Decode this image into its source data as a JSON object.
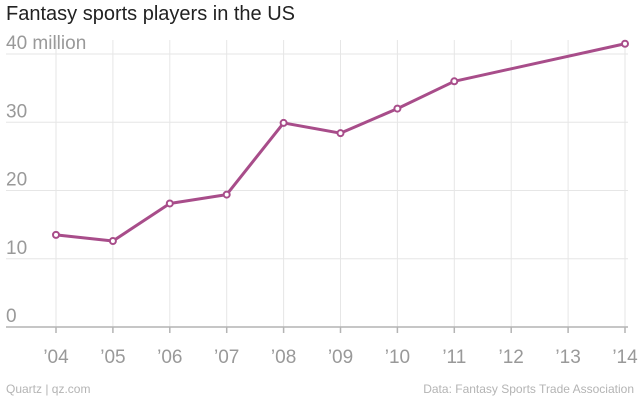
{
  "chart_data": {
    "type": "line",
    "title": "Fantasy sports players in the US",
    "xlabel": "",
    "ylabel": "",
    "y_unit_label": "40 million",
    "ylim": [
      0,
      42
    ],
    "y_ticks": [
      0,
      10,
      20,
      30,
      40
    ],
    "y_tick_labels": [
      "0",
      "10",
      "20",
      "30",
      "40 million"
    ],
    "x": [
      2004,
      2005,
      2006,
      2007,
      2008,
      2009,
      2010,
      2011,
      2012,
      2013,
      2014
    ],
    "x_tick_labels": [
      "’04",
      "’05",
      "’06",
      "’07",
      "’08",
      "’09",
      "’10",
      "’11",
      "’12",
      "’13",
      "’14"
    ],
    "series": [
      {
        "name": "Fantasy sports players",
        "color": "#a84d8a",
        "points": [
          {
            "x": 2004,
            "y": 13.5
          },
          {
            "x": 2005,
            "y": 12.6
          },
          {
            "x": 2006,
            "y": 18.1
          },
          {
            "x": 2007,
            "y": 19.4
          },
          {
            "x": 2008,
            "y": 29.9
          },
          {
            "x": 2009,
            "y": 28.4
          },
          {
            "x": 2010,
            "y": 32.0
          },
          {
            "x": 2011,
            "y": 36.0
          },
          {
            "x": 2014,
            "y": 41.5
          }
        ]
      }
    ],
    "grid": true
  },
  "footer": {
    "left": "Quartz | qz.com",
    "right": "Data: Fantasy Sports Trade Association"
  },
  "colors": {
    "line": "#a84d8a",
    "grid": "#e6e6e6",
    "axis": "#b4b4b4",
    "tick_text": "#999999",
    "title": "#222222",
    "footer": "#b4b4b4"
  }
}
